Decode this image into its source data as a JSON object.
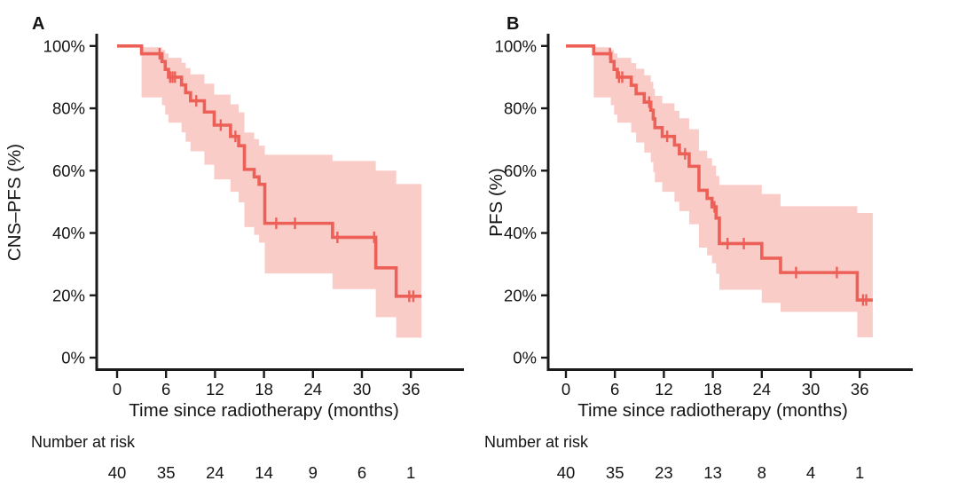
{
  "figure": {
    "colors": {
      "curve": "#EC6057",
      "band": "#FACCC8",
      "axis": "#1A1A1A",
      "text": "#141414"
    },
    "panels": [
      {
        "letter": "A"
      },
      {
        "letter": "B"
      }
    ]
  },
  "chart_data": [
    {
      "type": "line",
      "subtype": "kaplan-meier-step-with-confidence-band",
      "panel_letter": "A",
      "title": "",
      "xlabel": "Time since radiotherapy (months)",
      "ylabel": "CNS–PFS (%)",
      "xlim": [
        0,
        42
      ],
      "ylim": [
        0,
        100
      ],
      "x_ticks": [
        0,
        6,
        12,
        18,
        24,
        30,
        36
      ],
      "y_ticks": [
        0,
        20,
        40,
        60,
        80,
        100
      ],
      "y_tick_labels": [
        "0%",
        "20%",
        "40%",
        "60%",
        "80%",
        "100%"
      ],
      "grid": false,
      "legend": "none",
      "t_end": 37.3,
      "steps": [
        {
          "t": 0,
          "s": 100,
          "lo": 100,
          "up": 100
        },
        {
          "t": 3.0,
          "s": 97.5,
          "lo": 83.5,
          "up": 99.6
        },
        {
          "t": 5.5,
          "s": 95.0,
          "lo": 81.0,
          "up": 98.7
        },
        {
          "t": 5.9,
          "s": 92.5,
          "lo": 78.0,
          "up": 97.6
        },
        {
          "t": 6.3,
          "s": 90.0,
          "lo": 75.4,
          "up": 96.2
        },
        {
          "t": 7.9,
          "s": 87.5,
          "lo": 72.3,
          "up": 94.6
        },
        {
          "t": 8.4,
          "s": 85.0,
          "lo": 69.3,
          "up": 92.9
        },
        {
          "t": 9.0,
          "s": 82.4,
          "lo": 66.2,
          "up": 90.9
        },
        {
          "t": 10.7,
          "s": 78.8,
          "lo": 61.9,
          "up": 87.9
        },
        {
          "t": 11.9,
          "s": 74.6,
          "lo": 57.2,
          "up": 84.4
        },
        {
          "t": 13.9,
          "s": 71.0,
          "lo": 53.2,
          "up": 81.3
        },
        {
          "t": 14.9,
          "s": 68.0,
          "lo": 49.8,
          "up": 78.7
        },
        {
          "t": 15.6,
          "s": 60.4,
          "lo": 41.9,
          "up": 72.2
        },
        {
          "t": 16.8,
          "s": 58.0,
          "lo": 39.4,
          "up": 70.1
        },
        {
          "t": 17.4,
          "s": 55.6,
          "lo": 36.9,
          "up": 68.0
        },
        {
          "t": 18.1,
          "s": 43.1,
          "lo": 27.0,
          "up": 65.1
        },
        {
          "t": 26.4,
          "s": 38.6,
          "lo": 22.0,
          "up": 63.1
        },
        {
          "t": 31.7,
          "s": 28.8,
          "lo": 13.0,
          "up": 60.0
        },
        {
          "t": 34.2,
          "s": 19.7,
          "lo": 6.4,
          "up": 55.7
        }
      ],
      "censors": [
        {
          "t": 5.2,
          "s": 97.5
        },
        {
          "t": 6.5,
          "s": 90.0
        },
        {
          "t": 6.8,
          "s": 90.0
        },
        {
          "t": 7.1,
          "s": 90.0
        },
        {
          "t": 9.7,
          "s": 82.4
        },
        {
          "t": 12.7,
          "s": 74.6
        },
        {
          "t": 14.5,
          "s": 71.0
        },
        {
          "t": 19.5,
          "s": 43.1
        },
        {
          "t": 21.8,
          "s": 43.1
        },
        {
          "t": 27.0,
          "s": 38.6
        },
        {
          "t": 31.5,
          "s": 38.6
        },
        {
          "t": 35.8,
          "s": 19.7
        },
        {
          "t": 36.3,
          "s": 19.7
        }
      ],
      "number_at_risk": {
        "label": "Number at risk",
        "times": [
          0,
          6,
          12,
          18,
          24,
          30,
          36
        ],
        "counts": [
          40,
          35,
          24,
          14,
          9,
          6,
          1
        ]
      }
    },
    {
      "type": "line",
      "subtype": "kaplan-meier-step-with-confidence-band",
      "panel_letter": "B",
      "title": "",
      "xlabel": "Time since radiotherapy (months)",
      "ylabel": "PFS (%)",
      "xlim": [
        0,
        42
      ],
      "ylim": [
        0,
        100
      ],
      "x_ticks": [
        0,
        6,
        12,
        18,
        24,
        30,
        36
      ],
      "y_ticks": [
        0,
        20,
        40,
        60,
        80,
        100
      ],
      "y_tick_labels": [
        "0%",
        "20%",
        "40%",
        "60%",
        "80%",
        "100%"
      ],
      "grid": false,
      "legend": "none",
      "t_end": 37.6,
      "steps": [
        {
          "t": 0,
          "s": 100,
          "lo": 100,
          "up": 100
        },
        {
          "t": 3.4,
          "s": 97.5,
          "lo": 83.5,
          "up": 99.6
        },
        {
          "t": 5.5,
          "s": 95.0,
          "lo": 81.0,
          "up": 98.7
        },
        {
          "t": 5.9,
          "s": 92.5,
          "lo": 78.0,
          "up": 97.6
        },
        {
          "t": 6.3,
          "s": 90.0,
          "lo": 75.4,
          "up": 96.2
        },
        {
          "t": 8.0,
          "s": 87.4,
          "lo": 72.2,
          "up": 94.5
        },
        {
          "t": 8.6,
          "s": 84.7,
          "lo": 69.0,
          "up": 92.7
        },
        {
          "t": 9.6,
          "s": 82.0,
          "lo": 65.8,
          "up": 90.6
        },
        {
          "t": 10.4,
          "s": 79.4,
          "lo": 62.7,
          "up": 88.5
        },
        {
          "t": 10.7,
          "s": 76.6,
          "lo": 59.5,
          "up": 86.3
        },
        {
          "t": 10.9,
          "s": 73.8,
          "lo": 56.3,
          "up": 84.0
        },
        {
          "t": 11.8,
          "s": 71.0,
          "lo": 53.2,
          "up": 81.6
        },
        {
          "t": 13.3,
          "s": 68.2,
          "lo": 50.0,
          "up": 79.2
        },
        {
          "t": 13.9,
          "s": 65.4,
          "lo": 47.0,
          "up": 76.8
        },
        {
          "t": 15.1,
          "s": 61.4,
          "lo": 42.8,
          "up": 73.3
        },
        {
          "t": 16.3,
          "s": 53.7,
          "lo": 35.3,
          "up": 66.4
        },
        {
          "t": 17.3,
          "s": 51.1,
          "lo": 32.8,
          "up": 64.0
        },
        {
          "t": 17.9,
          "s": 48.4,
          "lo": 30.3,
          "up": 61.6
        },
        {
          "t": 18.4,
          "s": 44.8,
          "lo": 26.9,
          "up": 58.3
        },
        {
          "t": 18.8,
          "s": 36.6,
          "lo": 21.8,
          "up": 55.4
        },
        {
          "t": 24.0,
          "s": 31.9,
          "lo": 17.6,
          "up": 52.5
        },
        {
          "t": 26.3,
          "s": 27.3,
          "lo": 14.7,
          "up": 48.6
        },
        {
          "t": 35.7,
          "s": 18.5,
          "lo": 6.5,
          "up": 46.4
        }
      ],
      "censors": [
        {
          "t": 5.4,
          "s": 97.5
        },
        {
          "t": 6.5,
          "s": 90.0
        },
        {
          "t": 6.9,
          "s": 90.0
        },
        {
          "t": 10.2,
          "s": 82.0
        },
        {
          "t": 12.4,
          "s": 71.0
        },
        {
          "t": 14.6,
          "s": 65.4
        },
        {
          "t": 18.2,
          "s": 48.4
        },
        {
          "t": 19.8,
          "s": 36.6
        },
        {
          "t": 21.8,
          "s": 36.6
        },
        {
          "t": 28.2,
          "s": 27.3
        },
        {
          "t": 33.2,
          "s": 27.3
        },
        {
          "t": 36.4,
          "s": 18.5
        },
        {
          "t": 36.8,
          "s": 18.5
        }
      ],
      "number_at_risk": {
        "label": "Number at risk",
        "times": [
          0,
          6,
          12,
          18,
          24,
          30,
          36
        ],
        "counts": [
          40,
          35,
          23,
          13,
          8,
          4,
          1
        ]
      }
    }
  ]
}
